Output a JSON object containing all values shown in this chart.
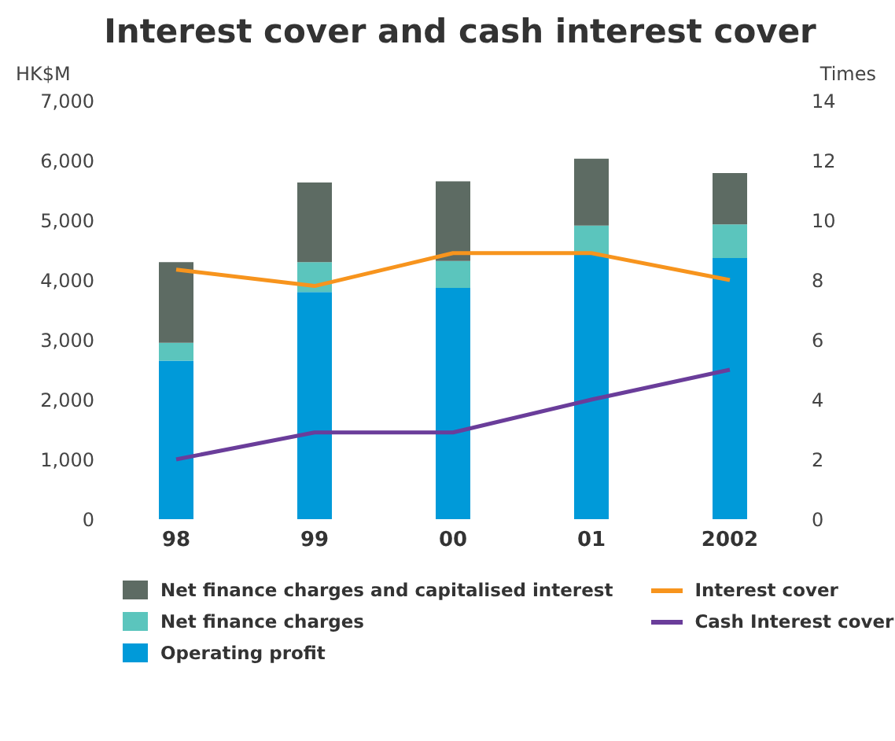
{
  "chart_data": {
    "type": "bar",
    "title": "Interest cover and cash interest cover",
    "ylabel": "HK$M",
    "y2label": "Times",
    "categories": [
      "98",
      "99",
      "00",
      "01",
      "2002"
    ],
    "stacked": true,
    "series": [
      {
        "name": "Operating profit",
        "color": "#009ad9",
        "values": [
          2650,
          3800,
          3870,
          4430,
          4370
        ]
      },
      {
        "name": "Net finance charges",
        "color": "#5bc5bd",
        "values": [
          300,
          500,
          450,
          480,
          560
        ]
      },
      {
        "name": "Net finance charges and capitalised interest",
        "color": "#5d6b63",
        "values": [
          1350,
          1330,
          1330,
          1120,
          860
        ]
      },
      {
        "name": "Interest cover",
        "type": "line",
        "axis": "y2",
        "color": "#f7941d",
        "values": [
          8.35,
          7.8,
          8.9,
          8.9,
          8.0
        ]
      },
      {
        "name": "Cash Interest cover",
        "type": "line",
        "axis": "y2",
        "color": "#6a3d9a",
        "values": [
          2.0,
          2.9,
          2.9,
          4.0,
          5.0
        ]
      }
    ],
    "ylim": [
      0,
      7000
    ],
    "yticks": [
      {
        "value": 0,
        "label": "0"
      },
      {
        "value": 1000,
        "label": "1,000"
      },
      {
        "value": 2000,
        "label": "2,000"
      },
      {
        "value": 3000,
        "label": "3,000"
      },
      {
        "value": 4000,
        "label": "4,000"
      },
      {
        "value": 5000,
        "label": "5,000"
      },
      {
        "value": 6000,
        "label": "6,000"
      },
      {
        "value": 7000,
        "label": "7,000"
      }
    ],
    "y2lim": [
      0,
      14
    ],
    "y2ticks": [
      0,
      2,
      4,
      6,
      8,
      10,
      12,
      14
    ],
    "grid": false,
    "legend": "bottom",
    "marker": "none",
    "line_style": "solid"
  }
}
